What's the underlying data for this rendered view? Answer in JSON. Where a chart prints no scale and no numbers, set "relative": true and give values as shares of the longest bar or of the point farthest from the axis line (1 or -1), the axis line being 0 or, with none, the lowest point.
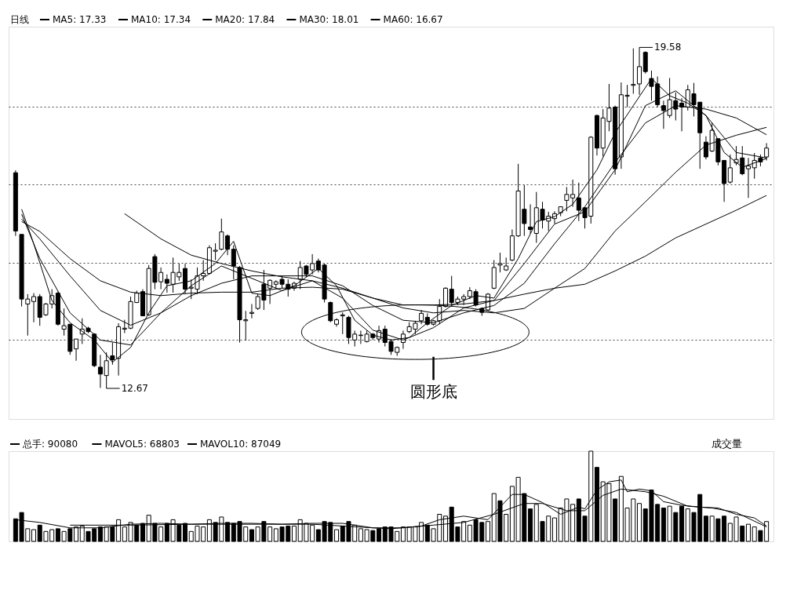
{
  "chart_data": [
    {
      "type": "candlestick",
      "title": "日线",
      "color": "#000000",
      "legend": "top left",
      "grid": "y",
      "tick_labels": false,
      "ylim": [
        12.05,
        20.0
      ],
      "yticks": [
        {
          "value": 13.65,
          "label": null
        },
        {
          "value": 15.22,
          "label": null
        },
        {
          "value": 16.81,
          "label": null
        },
        {
          "value": 18.38,
          "label": null
        }
      ],
      "categories": [
        null,
        null,
        null,
        null,
        null,
        null,
        null,
        null,
        null,
        null,
        null,
        null,
        null,
        null,
        null,
        null,
        null,
        null,
        null,
        null,
        null,
        null,
        null,
        null,
        null,
        null,
        null,
        null,
        null,
        null,
        null,
        null,
        null,
        null,
        null,
        null,
        null,
        null,
        null,
        null,
        null,
        null,
        null,
        null,
        null,
        null,
        null,
        null,
        null,
        null,
        null,
        null,
        null,
        null,
        null,
        null,
        null,
        null,
        null,
        null,
        null,
        null,
        null,
        null,
        null,
        null,
        null,
        null,
        null,
        null,
        null,
        null,
        null,
        null,
        null,
        null,
        null,
        null,
        null,
        null,
        null,
        null,
        null,
        null,
        null,
        null,
        null,
        null,
        null,
        null,
        null,
        null,
        null,
        null,
        null,
        null,
        null,
        null,
        null,
        null,
        null,
        null,
        null,
        null,
        null,
        null,
        null,
        null,
        null,
        null,
        null,
        null,
        null,
        null,
        null,
        null,
        null,
        null,
        null,
        null,
        null,
        null,
        null,
        null,
        null
      ],
      "ohlc": [
        [
          17.04,
          17.09,
          15.76,
          15.86
        ],
        [
          15.79,
          15.79,
          14.33,
          14.48
        ],
        [
          14.38,
          14.58,
          13.74,
          14.48
        ],
        [
          14.43,
          14.6,
          14.01,
          14.53
        ],
        [
          14.53,
          14.58,
          13.94,
          14.11
        ],
        [
          14.16,
          14.4,
          14.14,
          14.38
        ],
        [
          14.38,
          14.68,
          14.29,
          14.55
        ],
        [
          14.6,
          14.63,
          13.94,
          13.97
        ],
        [
          13.87,
          14.29,
          13.74,
          13.94
        ],
        [
          13.97,
          13.97,
          13.35,
          13.42
        ],
        [
          13.47,
          13.67,
          13.23,
          13.67
        ],
        [
          13.77,
          14.09,
          13.57,
          13.87
        ],
        [
          13.89,
          13.92,
          13.79,
          13.82
        ],
        [
          13.77,
          13.79,
          13.1,
          13.13
        ],
        [
          13.1,
          13.35,
          12.68,
          12.96
        ],
        [
          12.93,
          13.4,
          12.67,
          13.23
        ],
        [
          13.33,
          13.6,
          13.15,
          13.25
        ],
        [
          13.28,
          13.99,
          12.93,
          13.92
        ],
        [
          13.87,
          14.06,
          13.79,
          13.89
        ],
        [
          13.89,
          14.53,
          13.87,
          14.43
        ],
        [
          14.41,
          14.65,
          14.4,
          14.6
        ],
        [
          14.63,
          14.68,
          14.14,
          14.14
        ],
        [
          14.16,
          15.17,
          14.14,
          15.1
        ],
        [
          15.34,
          15.39,
          14.68,
          14.82
        ],
        [
          14.83,
          15.12,
          14.68,
          15.02
        ],
        [
          14.88,
          14.98,
          14.61,
          14.8
        ],
        [
          14.78,
          15.32,
          14.61,
          15.02
        ],
        [
          14.93,
          15.2,
          14.85,
          15.02
        ],
        [
          15.1,
          15.2,
          14.58,
          14.68
        ],
        [
          14.7,
          14.88,
          14.48,
          14.72
        ],
        [
          14.68,
          15.12,
          14.58,
          14.95
        ],
        [
          14.95,
          15.27,
          14.85,
          15.0
        ],
        [
          15.0,
          15.57,
          14.98,
          15.52
        ],
        [
          15.45,
          15.61,
          15.27,
          15.47
        ],
        [
          15.49,
          16.11,
          15.47,
          15.84
        ],
        [
          15.76,
          15.79,
          15.37,
          15.49
        ],
        [
          15.49,
          15.57,
          14.88,
          15.15
        ],
        [
          15.12,
          15.15,
          13.6,
          14.06
        ],
        [
          14.04,
          14.24,
          13.64,
          14.06
        ],
        [
          14.19,
          14.38,
          14.09,
          14.21
        ],
        [
          14.29,
          14.58,
          14.26,
          14.53
        ],
        [
          14.78,
          15.07,
          14.26,
          14.46
        ],
        [
          14.7,
          14.88,
          14.38,
          14.86
        ],
        [
          14.78,
          14.86,
          14.7,
          14.83
        ],
        [
          14.88,
          14.95,
          14.7,
          14.78
        ],
        [
          14.78,
          14.88,
          14.53,
          14.68
        ],
        [
          14.7,
          14.83,
          14.65,
          14.8
        ],
        [
          14.88,
          15.25,
          14.68,
          15.12
        ],
        [
          15.15,
          15.17,
          14.93,
          14.98
        ],
        [
          15.07,
          15.39,
          14.98,
          15.2
        ],
        [
          15.25,
          15.3,
          15.02,
          15.07
        ],
        [
          15.17,
          15.2,
          14.41,
          14.48
        ],
        [
          14.41,
          14.43,
          14.01,
          14.04
        ],
        [
          13.97,
          14.09,
          13.92,
          14.06
        ],
        [
          14.14,
          14.21,
          13.77,
          14.16
        ],
        [
          14.11,
          14.14,
          13.57,
          13.7
        ],
        [
          13.65,
          13.84,
          13.52,
          13.77
        ],
        [
          13.74,
          13.84,
          13.57,
          13.75
        ],
        [
          13.62,
          13.84,
          13.6,
          13.77
        ],
        [
          13.77,
          13.79,
          13.65,
          13.7
        ],
        [
          13.67,
          13.94,
          13.6,
          13.84
        ],
        [
          13.87,
          13.94,
          13.52,
          13.6
        ],
        [
          13.62,
          13.67,
          13.35,
          13.42
        ],
        [
          13.4,
          13.52,
          13.33,
          13.5
        ],
        [
          13.6,
          13.84,
          13.47,
          13.77
        ],
        [
          13.82,
          14.01,
          13.79,
          13.92
        ],
        [
          13.87,
          14.04,
          13.77,
          13.99
        ],
        [
          14.04,
          14.26,
          13.97,
          14.19
        ],
        [
          14.11,
          14.19,
          13.94,
          13.97
        ],
        [
          13.97,
          14.06,
          13.94,
          14.04
        ],
        [
          14.04,
          14.48,
          13.97,
          14.33
        ],
        [
          14.33,
          14.72,
          14.31,
          14.7
        ],
        [
          14.68,
          14.95,
          14.33,
          14.41
        ],
        [
          14.41,
          14.53,
          14.36,
          14.48
        ],
        [
          14.48,
          14.58,
          14.36,
          14.53
        ],
        [
          14.53,
          14.72,
          14.48,
          14.65
        ],
        [
          14.63,
          14.68,
          14.33,
          14.36
        ],
        [
          14.29,
          14.31,
          14.14,
          14.21
        ],
        [
          14.26,
          14.6,
          14.24,
          14.58
        ],
        [
          14.7,
          15.27,
          14.68,
          15.12
        ],
        [
          15.17,
          15.42,
          15.02,
          15.2
        ],
        [
          15.07,
          15.32,
          15.05,
          15.15
        ],
        [
          15.27,
          15.89,
          15.25,
          15.76
        ],
        [
          15.76,
          17.22,
          15.74,
          16.67
        ],
        [
          16.3,
          16.79,
          15.76,
          16.01
        ],
        [
          15.94,
          16.4,
          15.81,
          15.89
        ],
        [
          15.81,
          16.65,
          15.62,
          16.33
        ],
        [
          16.3,
          16.45,
          15.91,
          16.08
        ],
        [
          16.06,
          16.25,
          15.86,
          16.16
        ],
        [
          16.11,
          16.26,
          16.01,
          16.21
        ],
        [
          16.23,
          16.35,
          16.16,
          16.35
        ],
        [
          16.48,
          16.75,
          16.26,
          16.6
        ],
        [
          16.53,
          16.9,
          16.35,
          16.6
        ],
        [
          16.53,
          16.84,
          16.06,
          16.28
        ],
        [
          16.33,
          16.35,
          15.91,
          16.13
        ],
        [
          16.16,
          17.78,
          16.01,
          17.76
        ],
        [
          18.2,
          18.22,
          17.39,
          17.54
        ],
        [
          17.54,
          18.33,
          17.37,
          18.15
        ],
        [
          18.08,
          18.84,
          17.88,
          18.35
        ],
        [
          18.37,
          18.4,
          17.0,
          17.12
        ],
        [
          17.36,
          18.87,
          17.12,
          18.62
        ],
        [
          18.59,
          18.82,
          18.37,
          18.61
        ],
        [
          18.81,
          19.56,
          18.64,
          18.83
        ],
        [
          18.84,
          19.58,
          18.62,
          19.19
        ],
        [
          19.48,
          19.5,
          19.05,
          19.09
        ],
        [
          18.95,
          19.11,
          18.5,
          18.79
        ],
        [
          18.84,
          18.99,
          18.37,
          18.42
        ],
        [
          18.4,
          18.5,
          17.93,
          18.3
        ],
        [
          18.2,
          18.96,
          18.15,
          18.52
        ],
        [
          18.5,
          18.67,
          18.1,
          18.33
        ],
        [
          18.45,
          18.55,
          17.88,
          18.37
        ],
        [
          18.37,
          18.82,
          18.3,
          18.72
        ],
        [
          18.64,
          18.86,
          18.18,
          18.42
        ],
        [
          18.47,
          18.47,
          17.12,
          17.85
        ],
        [
          17.66,
          17.78,
          17.31,
          17.36
        ],
        [
          17.48,
          18.05,
          17.46,
          17.9
        ],
        [
          17.73,
          17.73,
          17.19,
          17.26
        ],
        [
          17.29,
          17.29,
          16.45,
          16.82
        ],
        [
          16.85,
          17.41,
          16.82,
          17.14
        ],
        [
          17.24,
          17.58,
          17.19,
          17.31
        ],
        [
          17.34,
          17.58,
          16.99,
          17.02
        ],
        [
          17.12,
          17.34,
          16.53,
          17.18
        ],
        [
          17.14,
          17.44,
          16.92,
          17.29
        ],
        [
          17.34,
          17.41,
          17.17,
          17.26
        ],
        [
          17.36,
          17.64,
          17.29,
          17.54
        ]
      ],
      "series": [
        {
          "name": "MA5: 17.33",
          "type": "line",
          "color": "#000000",
          "values": [
            null,
            16.3,
            null,
            15.6,
            null,
            null,
            14.45,
            null,
            null,
            14.0,
            null,
            null,
            null,
            13.65,
            null,
            null,
            13.2,
            null,
            null,
            13.5,
            null,
            null,
            14.2,
            null,
            null,
            14.75,
            null,
            null,
            null,
            14.85,
            null,
            null,
            null,
            15.2,
            null,
            null,
            15.65,
            null,
            null,
            14.6,
            null,
            null,
            14.55,
            null,
            null,
            null,
            14.75,
            null,
            null,
            null,
            15.1,
            null,
            null,
            14.75,
            null,
            null,
            14.05,
            null,
            null,
            13.75,
            null,
            null,
            13.65,
            null,
            null,
            13.7,
            null,
            null,
            14.0,
            null,
            null,
            null,
            14.35,
            null,
            null,
            null,
            14.55,
            null,
            null,
            14.5,
            null,
            null,
            null,
            15.3,
            null,
            null,
            16.05,
            null,
            null,
            16.15,
            null,
            null,
            16.4,
            null,
            null,
            null,
            17.1,
            null,
            null,
            17.85,
            null,
            null,
            18.4,
            null,
            null,
            18.95,
            null,
            null,
            18.6,
            null,
            null,
            18.45,
            null,
            null,
            18.2,
            null,
            null,
            17.45,
            null,
            null,
            17.15,
            null,
            null,
            null,
            17.33
          ]
        },
        {
          "name": "MA10: 17.34",
          "type": "line",
          "color": "#000000",
          "values": [
            null,
            16.2,
            null,
            null,
            15.3,
            null,
            null,
            null,
            null,
            14.2,
            null,
            null,
            null,
            null,
            13.65,
            null,
            null,
            null,
            null,
            13.55,
            null,
            null,
            null,
            null,
            14.2,
            null,
            null,
            null,
            null,
            14.75,
            null,
            null,
            null,
            null,
            15.15,
            null,
            null,
            null,
            null,
            14.9,
            null,
            null,
            null,
            null,
            14.65,
            null,
            null,
            null,
            null,
            14.85,
            null,
            null,
            null,
            null,
            14.5,
            null,
            null,
            null,
            null,
            13.85,
            null,
            null,
            null,
            null,
            13.65,
            null,
            null,
            null,
            null,
            13.9,
            null,
            null,
            null,
            null,
            14.3,
            null,
            null,
            null,
            null,
            14.45,
            null,
            null,
            null,
            null,
            15.2,
            null,
            null,
            null,
            null,
            16.0,
            null,
            null,
            null,
            null,
            16.25,
            null,
            null,
            null,
            null,
            17.1,
            null,
            null,
            null,
            null,
            18.4,
            null,
            null,
            null,
            null,
            18.7,
            null,
            null,
            null,
            null,
            18.2,
            null,
            null,
            null,
            null,
            17.45,
            null,
            null,
            null,
            null,
            17.34
          ]
        },
        {
          "name": "MA20: 17.84",
          "type": "line",
          "color": "#000000",
          "values": [
            null,
            16.1,
            null,
            null,
            15.7,
            null,
            null,
            null,
            null,
            14.95,
            null,
            null,
            null,
            null,
            14.25,
            null,
            null,
            null,
            null,
            13.95,
            null,
            null,
            null,
            null,
            14.2,
            null,
            null,
            null,
            null,
            14.55,
            null,
            null,
            null,
            null,
            14.8,
            null,
            null,
            null,
            null,
            14.95,
            null,
            null,
            null,
            null,
            14.95,
            null,
            null,
            null,
            null,
            14.95,
            null,
            null,
            null,
            null,
            14.75,
            null,
            null,
            null,
            null,
            14.35,
            null,
            null,
            null,
            null,
            14.05,
            null,
            null,
            null,
            null,
            14.0,
            null,
            null,
            null,
            null,
            14.2,
            null,
            null,
            null,
            null,
            14.35,
            null,
            null,
            null,
            null,
            14.8,
            null,
            null,
            null,
            null,
            15.6,
            null,
            null,
            null,
            null,
            16.35,
            null,
            null,
            null,
            null,
            17.25,
            null,
            null,
            null,
            null,
            18.05,
            null,
            null,
            null,
            null,
            18.4,
            null,
            null,
            null,
            null,
            18.33,
            null,
            null,
            null,
            null,
            18.15,
            null,
            null,
            null,
            null,
            17.81
          ]
        },
        {
          "name": "MA30: 18.01",
          "type": "line",
          "color": "#000000",
          "values": [
            null,
            16.05,
            null,
            null,
            15.85,
            null,
            null,
            null,
            null,
            15.3,
            null,
            null,
            null,
            null,
            14.85,
            null,
            null,
            null,
            null,
            14.62,
            null,
            null,
            null,
            null,
            14.55,
            null,
            null,
            null,
            null,
            14.6,
            null,
            null,
            null,
            null,
            14.62,
            null,
            null,
            null,
            null,
            14.62,
            null,
            null,
            null,
            null,
            14.7,
            null,
            null,
            null,
            null,
            14.72,
            null,
            null,
            null,
            null,
            14.68,
            null,
            null,
            null,
            null,
            14.5,
            null,
            null,
            null,
            null,
            14.3,
            null,
            null,
            null,
            null,
            14.2,
            null,
            null,
            null,
            null,
            14.25,
            null,
            null,
            null,
            null,
            14.2,
            null,
            null,
            null,
            null,
            14.29,
            null,
            null,
            null,
            null,
            14.7,
            null,
            null,
            null,
            null,
            15.1,
            null,
            null,
            null,
            null,
            15.86,
            null,
            null,
            null,
            null,
            16.45,
            null,
            null,
            null,
            null,
            17.05,
            null,
            null,
            null,
            null,
            17.6,
            null,
            null,
            null,
            null,
            17.8,
            null,
            null,
            null,
            null,
            17.96
          ]
        },
        {
          "name": "MA60: 16.67",
          "type": "line",
          "color": "#000000",
          "values": [
            null,
            null,
            null,
            null,
            null,
            null,
            null,
            null,
            null,
            null,
            null,
            null,
            null,
            null,
            null,
            null,
            null,
            null,
            16.21,
            null,
            null,
            null,
            null,
            null,
            15.7,
            null,
            null,
            null,
            null,
            15.37,
            null,
            null,
            null,
            null,
            15.2,
            null,
            null,
            null,
            null,
            15.05,
            null,
            null,
            null,
            null,
            14.93,
            null,
            null,
            null,
            null,
            14.85,
            null,
            null,
            null,
            null,
            14.7,
            null,
            null,
            null,
            null,
            14.5,
            null,
            null,
            null,
            null,
            14.36,
            null,
            null,
            null,
            null,
            14.36,
            null,
            null,
            null,
            null,
            14.38,
            null,
            null,
            null,
            null,
            14.45,
            null,
            null,
            null,
            null,
            14.58,
            null,
            null,
            null,
            null,
            14.7,
            null,
            null,
            null,
            null,
            14.78,
            null,
            null,
            null,
            null,
            15.05,
            null,
            null,
            null,
            null,
            15.35,
            null,
            null,
            null,
            null,
            15.72,
            null,
            null,
            null,
            null,
            16.0,
            null,
            null,
            null,
            null,
            16.28,
            null,
            null,
            null,
            null,
            16.58
          ]
        }
      ],
      "annotations": [
        "12.67",
        "19.58",
        "圆形底"
      ]
    },
    {
      "type": "bar",
      "relative": true,
      "legend": "top left",
      "tick_labels": false,
      "categories": [
        null,
        null,
        null,
        null,
        null,
        null,
        null,
        null,
        null,
        null,
        null,
        null,
        null,
        null,
        null,
        null,
        null,
        null,
        null,
        null,
        null,
        null,
        null,
        null,
        null,
        null,
        null,
        null,
        null,
        null,
        null,
        null,
        null,
        null,
        null,
        null,
        null,
        null,
        null,
        null,
        null,
        null,
        null,
        null,
        null,
        null,
        null,
        null,
        null,
        null,
        null,
        null,
        null,
        null,
        null,
        null,
        null,
        null,
        null,
        null,
        null,
        null,
        null,
        null,
        null,
        null,
        null,
        null,
        null,
        null,
        null,
        null,
        null,
        null,
        null,
        null,
        null,
        null,
        null,
        null,
        null,
        null,
        null,
        null,
        null,
        null,
        null,
        null,
        null,
        null,
        null,
        null,
        null,
        null,
        null,
        null,
        null,
        null,
        null,
        null,
        null,
        null,
        null,
        null,
        null,
        null,
        null,
        null,
        null,
        null,
        null,
        null,
        null,
        null,
        null,
        null,
        null,
        null,
        null,
        null,
        null,
        null,
        null,
        null,
        null
      ],
      "annotations": [
        "成交量"
      ],
      "series": [
        {
          "name": "总手: 90080",
          "type": "bar",
          "values": [
            0.25,
            0.32,
            0.14,
            0.13,
            0.18,
            0.11,
            0.13,
            0.14,
            0.11,
            0.14,
            0.16,
            0.17,
            0.11,
            0.14,
            0.16,
            0.16,
            0.16,
            0.24,
            0.16,
            0.21,
            0.18,
            0.2,
            0.29,
            0.2,
            0.16,
            0.2,
            0.24,
            0.18,
            0.2,
            0.11,
            0.17,
            0.16,
            0.24,
            0.21,
            0.27,
            0.21,
            0.2,
            0.22,
            0.16,
            0.13,
            0.16,
            0.22,
            0.16,
            0.14,
            0.16,
            0.17,
            0.17,
            0.24,
            0.2,
            0.18,
            0.13,
            0.22,
            0.21,
            0.13,
            0.17,
            0.22,
            0.18,
            0.14,
            0.13,
            0.12,
            0.14,
            0.16,
            0.16,
            0.11,
            0.16,
            0.16,
            0.16,
            0.21,
            0.18,
            0.14,
            0.3,
            0.28,
            0.38,
            0.16,
            0.22,
            0.18,
            0.24,
            0.21,
            0.22,
            0.53,
            0.45,
            0.3,
            0.61,
            0.71,
            0.53,
            0.36,
            0.41,
            0.22,
            0.28,
            0.26,
            0.37,
            0.47,
            0.41,
            0.47,
            0.28,
            1,
            0.82,
            0.66,
            0.64,
            0.47,
            0.72,
            0.37,
            0.47,
            0.42,
            0.36,
            0.57,
            0.41,
            0.37,
            0.39,
            0.32,
            0.39,
            0.36,
            0.32,
            0.52,
            0.28,
            0.28,
            0.25,
            0.28,
            0.2,
            0.27,
            0.17,
            0.19,
            0.16,
            0.12,
            0.22
          ],
          "colors": [
            "#000000",
            "#000000",
            "#ffffff",
            "#ffffff",
            "#000000",
            "#ffffff",
            "#ffffff",
            "#000000",
            "#ffffff",
            "#000000",
            "#ffffff",
            "#ffffff",
            "#000000",
            "#000000",
            "#000000",
            "#ffffff",
            "#000000",
            "#ffffff",
            "#ffffff",
            "#ffffff",
            "#000000",
            "#000000",
            "#ffffff",
            "#000000",
            "#ffffff",
            "#000000",
            "#ffffff",
            "#000000",
            "#000000",
            "#ffffff",
            "#ffffff",
            "#ffffff",
            "#ffffff",
            "#000000",
            "#ffffff",
            "#000000",
            "#000000",
            "#000000",
            "#ffffff",
            "#000000",
            "#ffffff",
            "#000000",
            "#ffffff",
            "#ffffff",
            "#000000",
            "#000000",
            "#ffffff",
            "#ffffff",
            "#ffffff",
            "#ffffff",
            "#000000",
            "#000000",
            "#000000",
            "#ffffff",
            "#000000",
            "#000000",
            "#ffffff",
            "#ffffff",
            "#ffffff",
            "#000000",
            "#000000",
            "#000000",
            "#000000",
            "#ffffff",
            "#ffffff",
            "#ffffff",
            "#ffffff",
            "#ffffff",
            "#000000",
            "#ffffff",
            "#ffffff",
            "#ffffff",
            "#000000",
            "#000000",
            "#ffffff",
            "#ffffff",
            "#000000",
            "#000000",
            "#ffffff",
            "#ffffff",
            "#000000",
            "#ffffff",
            "#ffffff",
            "#ffffff",
            "#000000",
            "#000000",
            "#ffffff",
            "#000000",
            "#ffffff",
            "#ffffff",
            "#ffffff",
            "#ffffff",
            "#ffffff",
            "#000000",
            "#000000",
            "#ffffff",
            "#000000",
            "#ffffff",
            "#ffffff",
            "#000000",
            "#ffffff",
            "#ffffff",
            "#ffffff",
            "#ffffff",
            "#000000",
            "#000000",
            "#000000",
            "#000000",
            "#ffffff",
            "#000000",
            "#000000",
            "#ffffff",
            "#000000",
            "#000000",
            "#000000",
            "#ffffff",
            "#000000",
            "#000000",
            "#ffffff",
            "#ffffff",
            "#000000",
            "#ffffff",
            "#ffffff",
            "#000000",
            "#ffffff"
          ]
        },
        {
          "name": "MAVOL5: 68803",
          "type": "line",
          "color": "#000000",
          "values": [
            0.24,
            null,
            null,
            null,
            0.21,
            null,
            null,
            null,
            null,
            0.15,
            null,
            null,
            null,
            null,
            0.15,
            null,
            null,
            null,
            null,
            0.19,
            null,
            null,
            null,
            null,
            0.2,
            null,
            null,
            null,
            null,
            0.19,
            null,
            null,
            null,
            null,
            0.2,
            null,
            null,
            null,
            null,
            0.2,
            null,
            null,
            null,
            null,
            0.19,
            null,
            null,
            null,
            null,
            0.2,
            null,
            null,
            null,
            null,
            0.2,
            null,
            null,
            null,
            null,
            0.15,
            null,
            null,
            0.14,
            null,
            null,
            null,
            null,
            0.17,
            null,
            null,
            0.24,
            null,
            null,
            null,
            0.28,
            null,
            null,
            null,
            0.24,
            null,
            null,
            null,
            0.52,
            null,
            0.52,
            null,
            null,
            0.43,
            null,
            null,
            0.3,
            null,
            null,
            0.38,
            0.36,
            null,
            0.57,
            null,
            0.66,
            null,
            0.68,
            0.55,
            null,
            0.58,
            null,
            0.56,
            null,
            0.44,
            null,
            null,
            0.4,
            null,
            null,
            0.38,
            null,
            null,
            0.37,
            null,
            null,
            0.3,
            null,
            null,
            0.26,
            null,
            0.17
          ]
        },
        {
          "name": "MAVOL10: 87049",
          "type": "line",
          "color": "#000000",
          "values": [
            null,
            null,
            null,
            null,
            null,
            null,
            null,
            null,
            null,
            0.18,
            null,
            null,
            null,
            null,
            null,
            null,
            null,
            null,
            null,
            0.18,
            null,
            null,
            null,
            null,
            null,
            null,
            null,
            null,
            null,
            0.19,
            null,
            null,
            null,
            null,
            null,
            null,
            null,
            null,
            null,
            0.19,
            null,
            null,
            null,
            null,
            null,
            null,
            null,
            null,
            null,
            0.19,
            null,
            null,
            null,
            null,
            null,
            null,
            null,
            null,
            null,
            0.15,
            null,
            null,
            null,
            null,
            0.15,
            null,
            null,
            null,
            null,
            0.18,
            null,
            null,
            null,
            null,
            0.21,
            null,
            null,
            null,
            null,
            0.3,
            null,
            null,
            null,
            null,
            0.42,
            null,
            null,
            0.42,
            null,
            null,
            null,
            0.34,
            null,
            null,
            0.34,
            null,
            null,
            0.51,
            null,
            null,
            0.58,
            null,
            null,
            null,
            0.55,
            null,
            null,
            0.5,
            null,
            null,
            null,
            0.39,
            null,
            null,
            null,
            0.37,
            null,
            null,
            null,
            0.32,
            null,
            null,
            null,
            null,
            0.16
          ]
        }
      ]
    }
  ]
}
